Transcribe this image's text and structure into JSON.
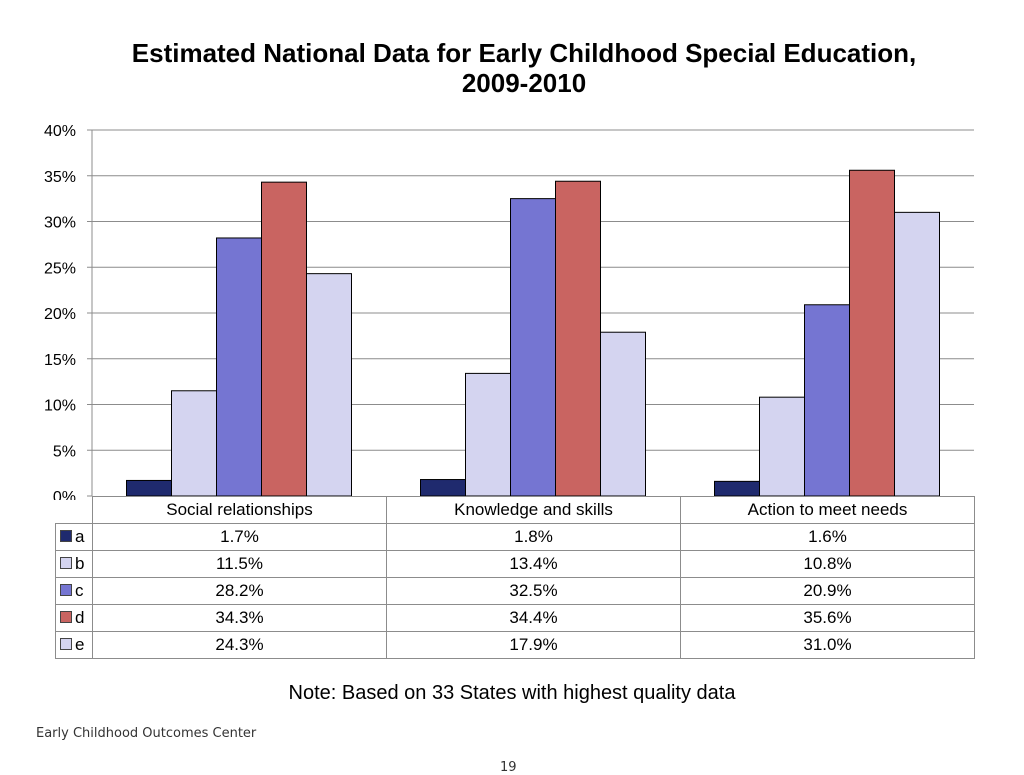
{
  "chart_data": {
    "type": "bar",
    "title": "Estimated National Data for Early Childhood Special Education,  2009-2010",
    "categories": [
      "Social relationships",
      "Knowledge and skills",
      "Action to meet needs"
    ],
    "series": [
      {
        "name": "a",
        "values": [
          1.7,
          1.8,
          1.6
        ],
        "labels": [
          "1.7%",
          "1.8%",
          "1.6%"
        ],
        "color": "#1f2a6e"
      },
      {
        "name": "b",
        "values": [
          11.5,
          13.4,
          10.8
        ],
        "labels": [
          "11.5%",
          "13.4%",
          "10.8%"
        ],
        "color": "#d4d4f0"
      },
      {
        "name": "c",
        "values": [
          28.2,
          32.5,
          20.9
        ],
        "labels": [
          "28.2%",
          "32.5%",
          "20.9%"
        ],
        "color": "#7575d2"
      },
      {
        "name": "d",
        "values": [
          34.3,
          34.4,
          35.6
        ],
        "labels": [
          "34.3%",
          "34.4%",
          "35.6%"
        ],
        "color": "#c96461"
      },
      {
        "name": "e",
        "values": [
          24.3,
          17.9,
          31.0
        ],
        "labels": [
          "24.3%",
          "17.9%",
          "31.0%"
        ],
        "color": "#d4d4f0"
      }
    ],
    "yticks": [
      "0%",
      "5%",
      "10%",
      "15%",
      "20%",
      "25%",
      "30%",
      "35%",
      "40%"
    ],
    "ylim": [
      0,
      40
    ],
    "grid": true,
    "legend": "data-table"
  },
  "note": "Note:  Based on 33 States with highest quality data",
  "footer": "Early Childhood Outcomes Center",
  "page_number": "19"
}
